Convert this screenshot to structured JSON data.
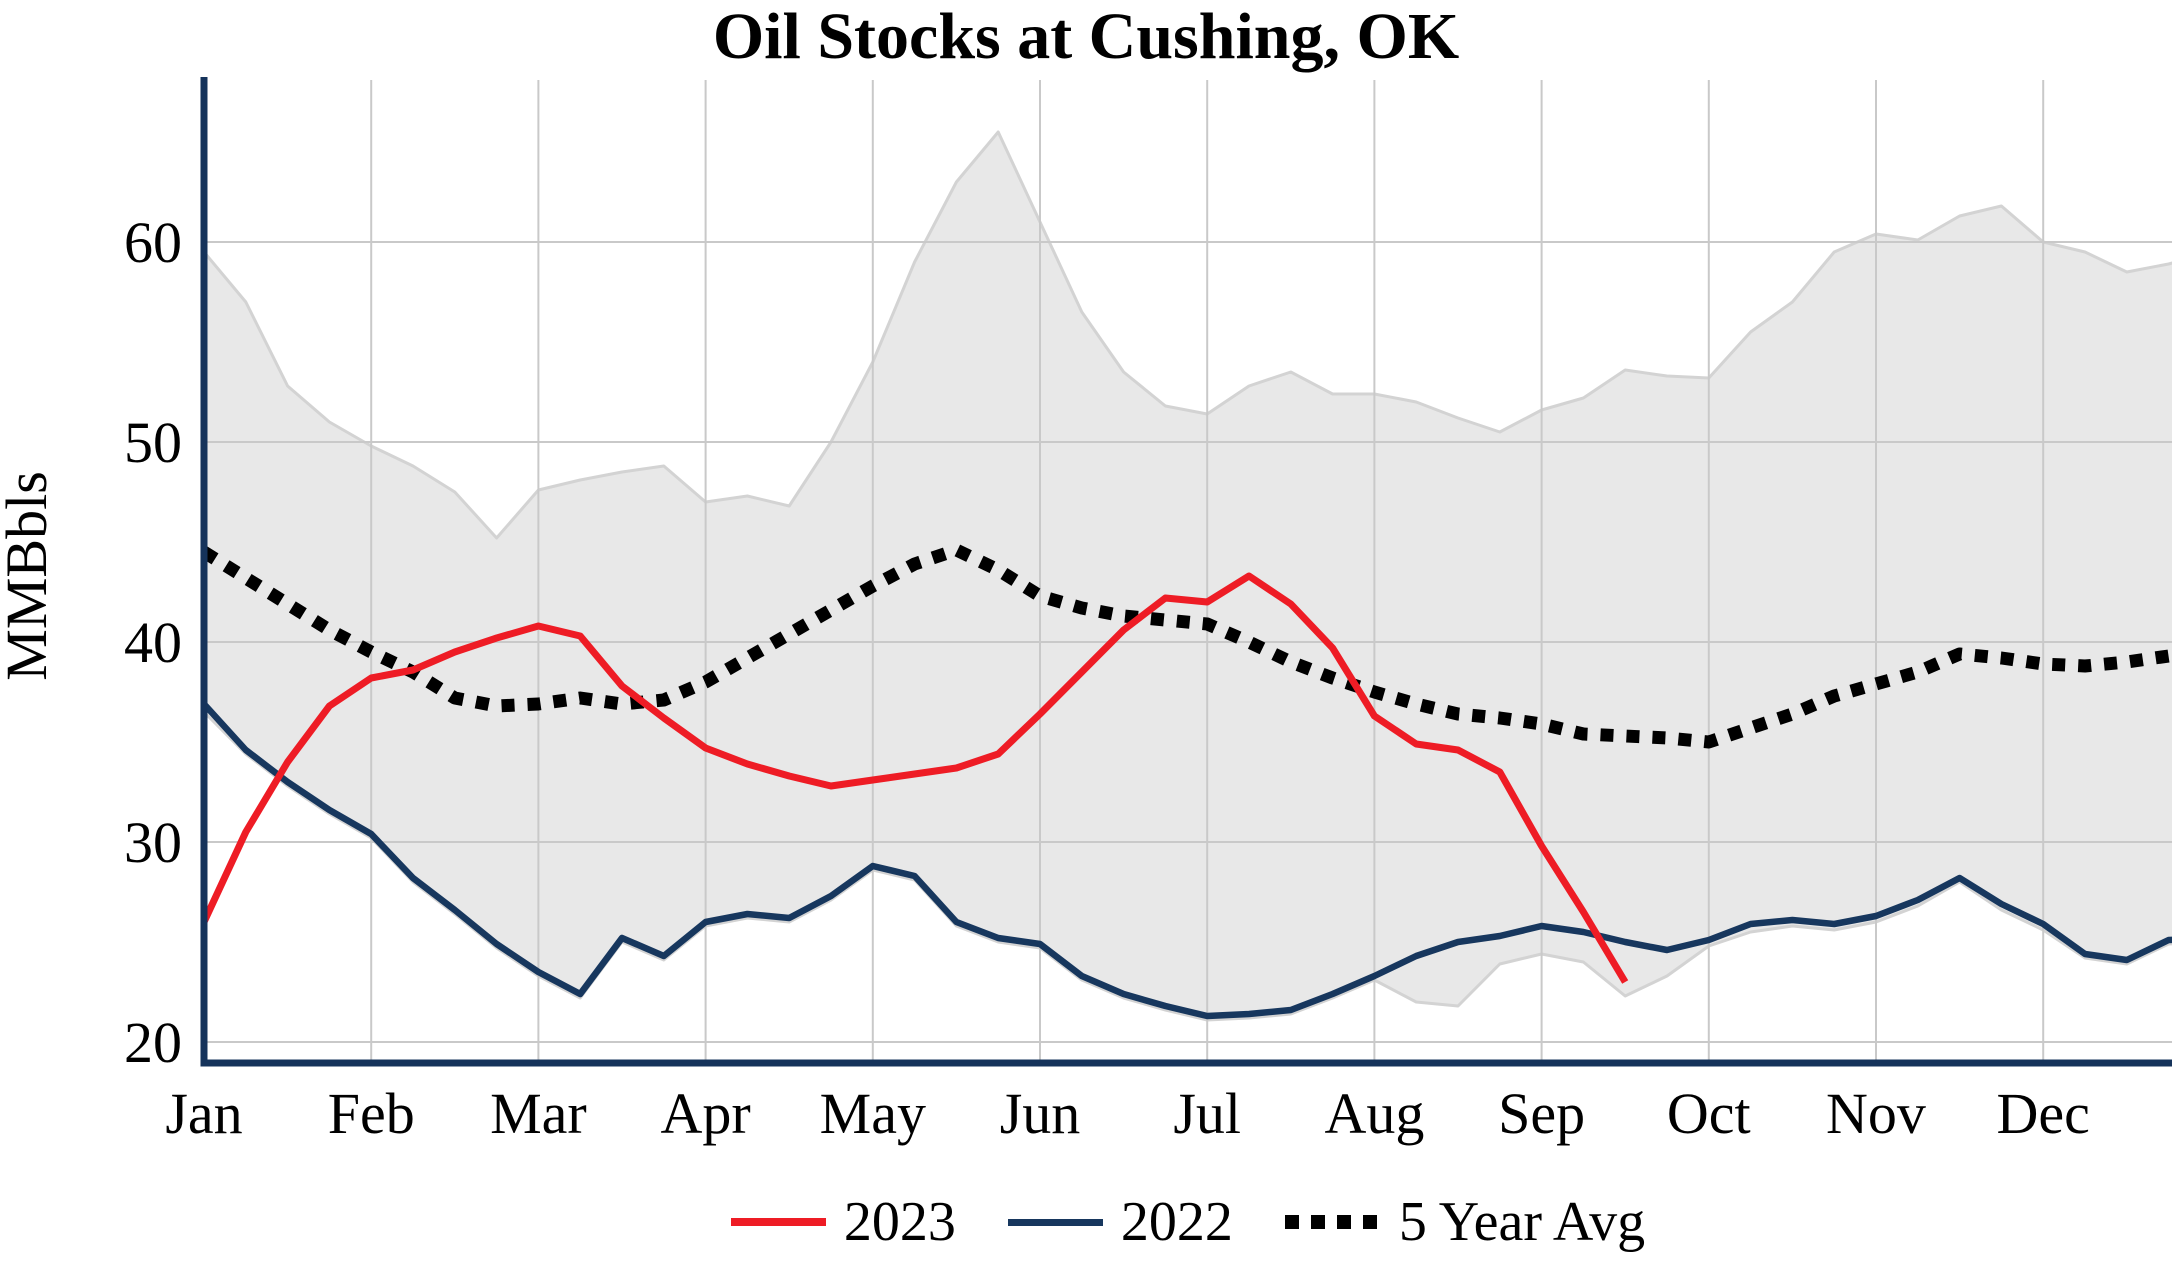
{
  "chart_data": {
    "type": "line",
    "title": "Oil Stocks at Cushing, OK",
    "ylabel": "MMBbls",
    "x_tick_labels": [
      "Jan",
      "Feb",
      "Mar",
      "Apr",
      "May",
      "Jun",
      "Jul",
      "Aug",
      "Sep",
      "Oct",
      "Nov",
      "Dec"
    ],
    "y_ticks": [
      20,
      30,
      40,
      50,
      60
    ],
    "ylim": [
      18.9,
      68.1
    ],
    "xlim_months": [
      0,
      11.77
    ],
    "grid": true,
    "legend_position": "bottom",
    "colors": {
      "grid": "#c9c9c9",
      "axis": "#15335b",
      "background": "#ffffff"
    },
    "band": {
      "description": "5 year min-max range (shaded)",
      "fill": "#e8e8e8",
      "edge": "#d3d3d3",
      "x_start": 0,
      "x_step": 0.25,
      "upper": [
        59.5,
        57.0,
        52.8,
        51.0,
        49.8,
        48.8,
        47.5,
        45.2,
        47.6,
        48.1,
        48.5,
        48.8,
        47.0,
        47.3,
        46.8,
        50.0,
        54.0,
        59.0,
        63.0,
        65.5,
        61.0,
        56.5,
        53.5,
        51.8,
        51.4,
        52.8,
        53.5,
        52.4,
        52.4,
        52.0,
        51.2,
        50.5,
        51.6,
        52.2,
        53.6,
        53.3,
        53.2,
        55.5,
        57.0,
        59.5,
        60.4,
        60.1,
        61.3,
        61.8,
        60.0,
        59.5,
        58.5,
        58.9,
        59.5
      ],
      "lower": [
        36.5,
        34.4,
        32.8,
        31.4,
        30.2,
        28.0,
        26.4,
        24.7,
        23.3,
        22.2,
        25.0,
        24.1,
        25.8,
        26.2,
        26.0,
        27.1,
        28.6,
        28.1,
        25.8,
        25.0,
        24.7,
        23.1,
        22.2,
        21.6,
        21.1,
        21.2,
        21.4,
        22.2,
        23.1,
        22.0,
        21.8,
        23.9,
        24.4,
        24.0,
        22.3,
        23.3,
        24.8,
        25.5,
        25.8,
        25.6,
        26.0,
        26.8,
        28.0,
        26.6,
        25.6,
        24.2,
        23.9,
        24.9,
        25.0
      ]
    },
    "series": [
      {
        "name": "2023",
        "style": "solid",
        "color": "#ee1c25",
        "width": 7,
        "x_start": 0,
        "x_step": 0.25,
        "values": [
          26.0,
          30.5,
          34.0,
          36.8,
          38.2,
          38.6,
          39.5,
          40.2,
          40.8,
          40.3,
          37.8,
          36.2,
          34.7,
          33.9,
          33.3,
          32.8,
          33.1,
          33.4,
          33.7,
          34.4,
          36.4,
          38.5,
          40.6,
          42.2,
          42.0,
          43.3,
          41.9,
          39.7,
          36.3,
          34.9,
          34.6,
          33.5,
          29.8,
          26.5,
          23.0
        ]
      },
      {
        "name": "2022",
        "style": "solid",
        "color": "#17375e",
        "width": 6.5,
        "x_start": 0,
        "x_step": 0.25,
        "values": [
          36.9,
          34.6,
          33.0,
          31.6,
          30.4,
          28.2,
          26.6,
          24.9,
          23.5,
          22.4,
          25.2,
          24.3,
          26.0,
          26.4,
          26.2,
          27.3,
          28.8,
          28.3,
          26.0,
          25.2,
          24.9,
          23.3,
          22.4,
          21.8,
          21.3,
          21.4,
          21.6,
          22.4,
          23.3,
          24.3,
          25.0,
          25.3,
          25.8,
          25.5,
          25.0,
          24.6,
          25.1,
          25.9,
          26.1,
          25.9,
          26.3,
          27.1,
          28.2,
          26.9,
          25.9,
          24.4,
          24.1,
          25.1,
          25.2
        ]
      },
      {
        "name": "5 Year Avg",
        "style": "dotted",
        "color": "#000000",
        "width": 13,
        "dash": "13 13",
        "x_start": 0,
        "x_step": 0.25,
        "values": [
          44.5,
          43.2,
          41.9,
          40.6,
          39.5,
          38.5,
          37.2,
          36.8,
          36.9,
          37.2,
          36.9,
          37.1,
          38.0,
          39.2,
          40.4,
          41.6,
          42.8,
          43.9,
          44.6,
          43.6,
          42.3,
          41.7,
          41.3,
          41.1,
          40.9,
          40.0,
          39.0,
          38.2,
          37.5,
          36.9,
          36.4,
          36.2,
          35.9,
          35.4,
          35.3,
          35.2,
          35.0,
          35.7,
          36.4,
          37.3,
          37.9,
          38.5,
          39.4,
          39.2,
          38.9,
          38.8,
          39.0,
          39.3,
          40.0
        ]
      }
    ]
  }
}
